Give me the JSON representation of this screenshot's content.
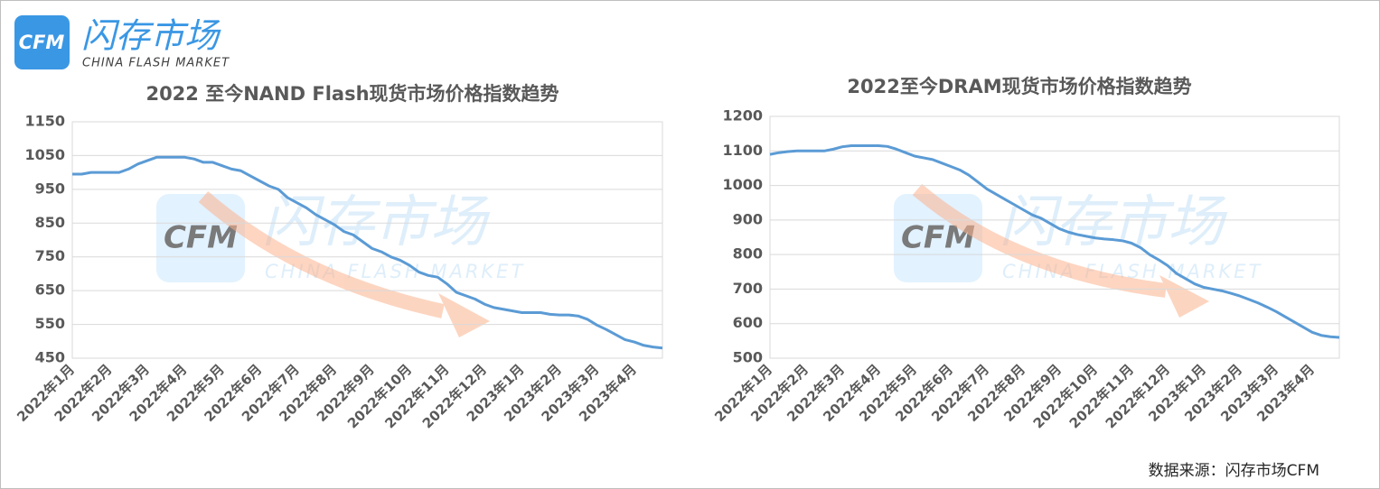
{
  "logo": {
    "mark": "CFM",
    "name": "闪存市场",
    "subtitle": "CHINA FLASH MARKET"
  },
  "source": "数据来源：闪存市场CFM",
  "chart_data": [
    {
      "type": "line",
      "title": "2022 至今NAND Flash现货市场价格指数趋势",
      "categories": [
        "2022年1月",
        null,
        null,
        null,
        "2022年2月",
        null,
        null,
        null,
        "2022年3月",
        null,
        null,
        null,
        "2022年4月",
        null,
        null,
        null,
        "2022年5月",
        null,
        null,
        null,
        "2022年6月",
        null,
        null,
        null,
        "2022年7月",
        null,
        null,
        null,
        "2022年8月",
        null,
        null,
        null,
        "2022年9月",
        null,
        null,
        null,
        "2022年10月",
        null,
        null,
        null,
        "2022年11月",
        null,
        null,
        null,
        "2022年12月",
        null,
        null,
        null,
        "2023年1月",
        null,
        null,
        null,
        "2023年2月",
        null,
        null,
        null,
        "2023年3月",
        null,
        null,
        null,
        "2023年4月",
        null,
        null,
        null
      ],
      "series": [
        {
          "color": "#5b9bd5",
          "values": [
            995,
            995,
            1000,
            1000,
            1000,
            1000,
            1010,
            1025,
            1035,
            1045,
            1045,
            1045,
            1045,
            1040,
            1030,
            1030,
            1020,
            1010,
            1005,
            990,
            975,
            960,
            950,
            925,
            910,
            895,
            875,
            860,
            845,
            825,
            815,
            795,
            775,
            765,
            750,
            740,
            725,
            705,
            695,
            690,
            670,
            645,
            635,
            625,
            610,
            600,
            595,
            590,
            585,
            585,
            585,
            580,
            578,
            578,
            575,
            565,
            548,
            535,
            520,
            505,
            498,
            488,
            483,
            480
          ]
        }
      ],
      "ylim": [
        450,
        1150
      ],
      "yticks": [
        450,
        550,
        650,
        750,
        850,
        950,
        1050,
        1150
      ],
      "grid": true
    },
    {
      "type": "line",
      "title": "2022至今DRAM现货市场价格指数趋势",
      "categories": [
        "2022年1月",
        null,
        null,
        null,
        "2022年2月",
        null,
        null,
        null,
        "2022年3月",
        null,
        null,
        null,
        "2022年4月",
        null,
        null,
        null,
        "2022年5月",
        null,
        null,
        null,
        "2022年6月",
        null,
        null,
        null,
        "2022年7月",
        null,
        null,
        null,
        "2022年8月",
        null,
        null,
        null,
        "2022年9月",
        null,
        null,
        null,
        "2022年10月",
        null,
        null,
        null,
        "2022年11月",
        null,
        null,
        null,
        "2022年12月",
        null,
        null,
        null,
        "2023年1月",
        null,
        null,
        null,
        "2023年2月",
        null,
        null,
        null,
        "2023年3月",
        null,
        null,
        null,
        "2023年4月",
        null,
        null,
        null
      ],
      "series": [
        {
          "color": "#5b9bd5",
          "values": [
            1090,
            1095,
            1098,
            1100,
            1100,
            1100,
            1100,
            1105,
            1112,
            1115,
            1115,
            1115,
            1115,
            1113,
            1105,
            1095,
            1085,
            1080,
            1075,
            1065,
            1055,
            1045,
            1030,
            1010,
            990,
            975,
            960,
            945,
            930,
            915,
            905,
            890,
            875,
            865,
            858,
            853,
            848,
            845,
            843,
            840,
            833,
            820,
            800,
            785,
            768,
            745,
            730,
            715,
            705,
            700,
            695,
            688,
            680,
            670,
            660,
            648,
            635,
            620,
            605,
            590,
            575,
            566,
            562,
            560
          ]
        }
      ],
      "ylim": [
        500,
        1200
      ],
      "yticks": [
        500,
        600,
        700,
        800,
        900,
        1000,
        1100,
        1200
      ],
      "grid": true
    }
  ]
}
